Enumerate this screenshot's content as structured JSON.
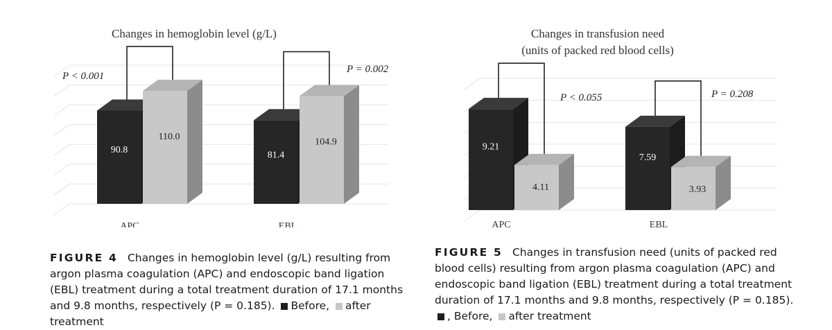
{
  "chart_data": [
    {
      "type": "bar",
      "title": "Changes in hemoglobin level (g/L)",
      "subtitle": "",
      "categories": [
        "APC",
        "EBL"
      ],
      "series": [
        {
          "name": "Before",
          "values": [
            90.8,
            81.4
          ],
          "labels": [
            "90.8",
            "81.4"
          ],
          "color": "#262626"
        },
        {
          "name": "after treatment",
          "values": [
            110.0,
            104.9
          ],
          "labels": [
            "110.0",
            "104.9"
          ],
          "color": "#c8c8c8"
        }
      ],
      "annotations": [
        "P < 0.001",
        "P = 0.002"
      ],
      "ylim": [
        0,
        135
      ],
      "grid": true,
      "style": "3d"
    },
    {
      "type": "bar",
      "title": "Changes in transfusion need",
      "subtitle": "(units of packed red blood cells)",
      "categories": [
        "APC",
        "EBL"
      ],
      "series": [
        {
          "name": "Before",
          "values": [
            9.21,
            7.59
          ],
          "labels": [
            "9.21",
            "7.59"
          ],
          "color": "#262626"
        },
        {
          "name": "after treatment",
          "values": [
            4.11,
            3.93
          ],
          "labels": [
            "4.11",
            "3.93"
          ],
          "color": "#c8c8c8"
        }
      ],
      "annotations": [
        "P < 0.055",
        "P = 0.208"
      ],
      "ylim": [
        0,
        12
      ],
      "grid": true,
      "style": "3d"
    }
  ],
  "captions": [
    {
      "label": "FIGURE 4",
      "text": "Changes in hemoglobin level (g/L) resulting from argon plasma coagulation (APC) and endoscopic band ligation (EBL) treatment during a total treatment duration of 17.1 months and 9.8 months, respectively (P = 0.185).",
      "before": "Before,",
      "after": "after treatment"
    },
    {
      "label": "FIGURE 5",
      "text": "Changes in transfusion need (units of packed red blood cells) resulting from argon plasma coagulation (APC) and endoscopic band ligation (EBL) treatment during a total treatment duration of 17.1 months and 9.8 months, respectively (P = 0.185).",
      "before": ", Before,",
      "after": "after treatment"
    }
  ]
}
